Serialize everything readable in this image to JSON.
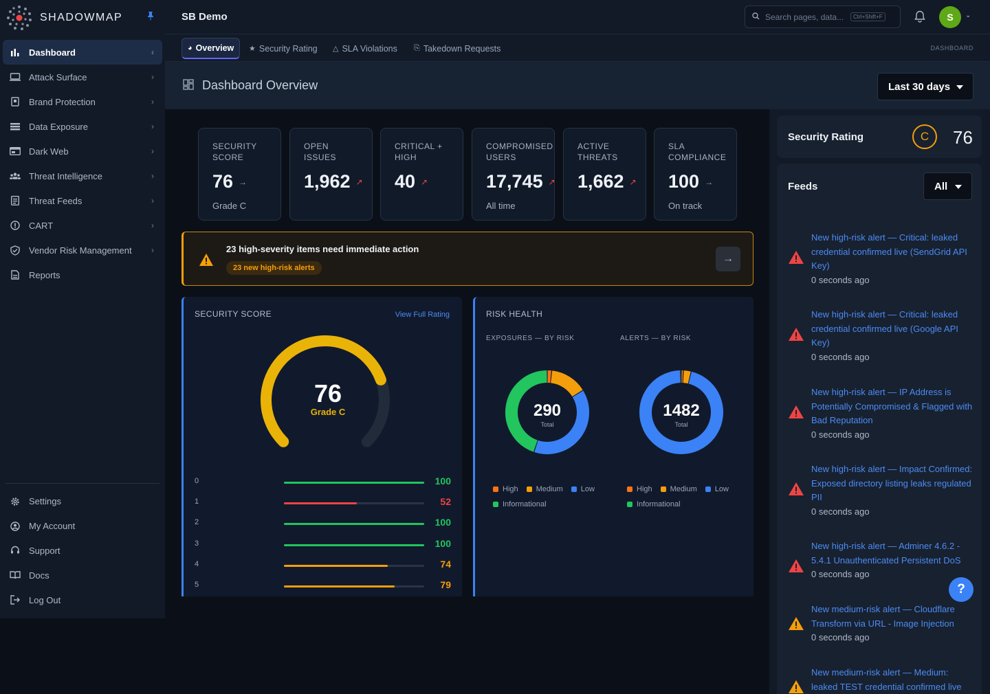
{
  "brand": {
    "name": "SHADOWMAP"
  },
  "sidebar": {
    "items": [
      {
        "label": "Dashboard",
        "icon": "bar-chart-icon",
        "active": true
      },
      {
        "label": "Attack Surface",
        "icon": "monitor-icon"
      },
      {
        "label": "Brand Protection",
        "icon": "document-badge-icon"
      },
      {
        "label": "Data Exposure",
        "icon": "database-icon"
      },
      {
        "label": "Dark Web",
        "icon": "browser-icon"
      },
      {
        "label": "Threat Intelligence",
        "icon": "users-icon"
      },
      {
        "label": "Threat Feeds",
        "icon": "list-icon"
      },
      {
        "label": "CART",
        "icon": "info-circle-icon"
      },
      {
        "label": "Vendor Risk Management",
        "icon": "shield-check-icon"
      },
      {
        "label": "Reports",
        "icon": "report-icon"
      }
    ],
    "bottom": [
      {
        "label": "Settings",
        "icon": "gear-icon"
      },
      {
        "label": "My Account",
        "icon": "user-circle-icon"
      },
      {
        "label": "Support",
        "icon": "headset-icon"
      },
      {
        "label": "Docs",
        "icon": "book-icon"
      },
      {
        "label": "Log Out",
        "icon": "logout-icon"
      }
    ]
  },
  "topbar": {
    "org": "SB Demo",
    "search_placeholder": "Search pages, data...",
    "search_shortcut": "Ctrl+Shift+F",
    "avatar_initial": "S"
  },
  "tabs": [
    {
      "label": "Overview",
      "active": true
    },
    {
      "label": "Security Rating"
    },
    {
      "label": "SLA Violations"
    },
    {
      "label": "Takedown Requests"
    }
  ],
  "breadcrumb": "DASHBOARD",
  "header": {
    "title": "Dashboard Overview",
    "range": "Last 30 days"
  },
  "kpis": [
    {
      "label1": "SECURITY",
      "label2": "SCORE",
      "value": "76",
      "trend": "→",
      "trend_dir": "flat",
      "sub": "Grade C"
    },
    {
      "label1": "OPEN",
      "label2": "ISSUES",
      "value": "1,962",
      "trend": "↗",
      "trend_dir": "up",
      "sub": ""
    },
    {
      "label1": "CRITICAL +",
      "label2": "HIGH",
      "value": "40",
      "trend": "↗",
      "trend_dir": "up",
      "sub": ""
    },
    {
      "label1": "COMPROMISED",
      "label2": "USERS",
      "value": "17,745",
      "trend": "↗",
      "trend_dir": "up",
      "sub": "All time"
    },
    {
      "label1": "ACTIVE",
      "label2": "THREATS",
      "value": "1,662",
      "trend": "↗",
      "trend_dir": "up",
      "sub": ""
    },
    {
      "label1": "SLA",
      "label2": "COMPLIANCE",
      "value": "100",
      "trend": "→",
      "trend_dir": "flat",
      "sub": "On track"
    }
  ],
  "banner": {
    "text": "23 high-severity items need immediate action",
    "pill": "23 new high-risk alerts"
  },
  "security_panel": {
    "title": "SECURITY SCORE",
    "link": "View Full Rating",
    "score": 76,
    "score_label": "76",
    "grade": "Grade C",
    "bars": [
      {
        "label": "0",
        "value": 100,
        "value_label": "100",
        "color": "#22c55e"
      },
      {
        "label": "1",
        "value": 52,
        "value_label": "52",
        "color": "#ef4444"
      },
      {
        "label": "2",
        "value": 100,
        "value_label": "100",
        "color": "#22c55e"
      },
      {
        "label": "3",
        "value": 100,
        "value_label": "100",
        "color": "#22c55e"
      },
      {
        "label": "4",
        "value": 74,
        "value_label": "74",
        "color": "#f59e0b"
      },
      {
        "label": "5",
        "value": 79,
        "value_label": "79",
        "color": "#f59e0b"
      }
    ]
  },
  "risk_panel": {
    "title": "RISK HEALTH",
    "exposures_head": "EXPOSURES — BY RISK",
    "alerts_head": "ALERTS — BY RISK",
    "total_word": "Total",
    "legend": [
      {
        "label": "High",
        "color": "#f97316"
      },
      {
        "label": "Medium",
        "color": "#f59e0b"
      },
      {
        "label": "Low",
        "color": "#3b82f6"
      },
      {
        "label": "Informational",
        "color": "#22c55e"
      }
    ]
  },
  "chart_data": [
    {
      "type": "pie",
      "title": "EXPOSURES — BY RISK",
      "total": 290,
      "total_label": "290",
      "categories": [
        "High",
        "Medium",
        "Low",
        "Informational"
      ],
      "values": [
        5,
        42,
        113,
        130
      ]
    },
    {
      "type": "pie",
      "title": "ALERTS — BY RISK",
      "total": 1482,
      "total_label": "1482",
      "categories": [
        "High",
        "Medium",
        "Low",
        "Informational"
      ],
      "values": [
        12,
        44,
        1421,
        5
      ]
    }
  ],
  "rating_card": {
    "title": "Security Rating",
    "grade": "C",
    "score": "76"
  },
  "feeds": {
    "title": "Feeds",
    "filter": "All",
    "items": [
      {
        "level": "high",
        "text": "New high-risk alert — Critical: leaked credential confirmed live (SendGrid API Key)",
        "time": "0 seconds ago"
      },
      {
        "level": "high",
        "text": "New high-risk alert — Critical: leaked credential confirmed live (Google API Key)",
        "time": "0 seconds ago"
      },
      {
        "level": "high",
        "text": "New high-risk alert — IP Address is Potentially Compromised & Flagged with Bad Reputation",
        "time": "0 seconds ago"
      },
      {
        "level": "high",
        "text": "New high-risk alert — Impact Confirmed: Exposed directory listing leaks regulated PII",
        "time": "0 seconds ago"
      },
      {
        "level": "high",
        "text": "New high-risk alert — Adminer 4.6.2 - 5.4.1 Unauthenticated Persistent DoS",
        "time": "0 seconds ago"
      },
      {
        "level": "medium",
        "text": "New medium-risk alert — Cloudflare Transform via URL - Image Injection",
        "time": "0 seconds ago"
      },
      {
        "level": "medium",
        "text": "New medium-risk alert — Medium: leaked TEST credential confirmed live",
        "time": ""
      }
    ]
  },
  "help_label": "?"
}
